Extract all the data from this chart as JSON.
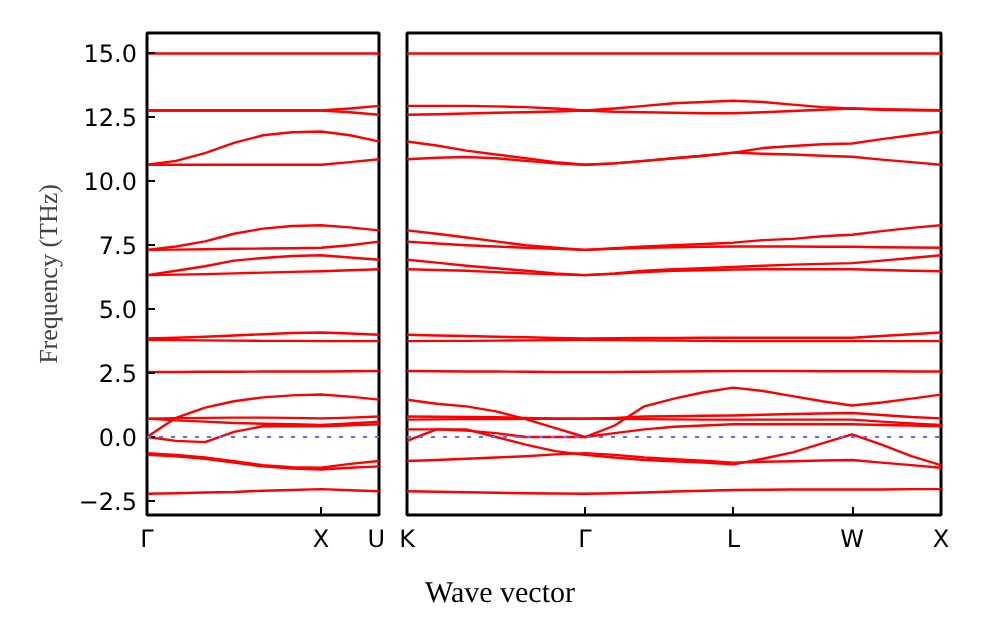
{
  "chart_data": [
    {
      "type": "line",
      "ylabel": "Frequency (THz)",
      "categories": [
        "Γ",
        null,
        null,
        null,
        null,
        null,
        "X",
        null,
        "U"
      ],
      "ylim": [
        -3.05,
        15.8
      ],
      "yticks": [
        {
          "value": -2.5,
          "label": "−2.5"
        },
        {
          "value": 0,
          "label": "0.0"
        },
        {
          "value": 2.5,
          "label": "2.5"
        },
        {
          "value": 5,
          "label": "5.0"
        },
        {
          "value": 7.5,
          "label": "7.5"
        },
        {
          "value": 10,
          "label": "10.0"
        },
        {
          "value": 12.5,
          "label": "12.5"
        },
        {
          "value": 15,
          "label": "15.0"
        }
      ],
      "ref_lines": [
        {
          "axis": "y",
          "value": 0,
          "color": "#6666ff",
          "line_style": "dotted"
        }
      ],
      "series": [
        {
          "color": "#ff0000",
          "values": [
            15.0,
            15.0,
            15.0,
            15.0,
            15.0,
            15.0,
            15.0,
            15.0,
            15.0
          ]
        },
        {
          "color": "#ff0000",
          "values": [
            12.77,
            12.77,
            12.77,
            12.77,
            12.77,
            12.77,
            12.77,
            12.85,
            12.95
          ]
        },
        {
          "color": "#ff0000",
          "values": [
            12.77,
            12.77,
            12.77,
            12.77,
            12.77,
            12.77,
            12.77,
            12.7,
            12.6
          ]
        },
        {
          "color": "#ff0000",
          "values": [
            10.65,
            10.8,
            11.1,
            11.5,
            11.8,
            11.92,
            11.95,
            11.8,
            11.56
          ]
        },
        {
          "color": "#ff0000",
          "values": [
            10.65,
            10.65,
            10.65,
            10.65,
            10.65,
            10.65,
            10.65,
            10.75,
            10.86
          ]
        },
        {
          "color": "#ff0000",
          "values": [
            7.32,
            7.45,
            7.65,
            7.95,
            8.15,
            8.25,
            8.28,
            8.2,
            8.08
          ]
        },
        {
          "color": "#ff0000",
          "values": [
            7.32,
            7.33,
            7.34,
            7.36,
            7.37,
            7.38,
            7.4,
            7.5,
            7.64
          ]
        },
        {
          "color": "#ff0000",
          "values": [
            6.33,
            6.5,
            6.68,
            6.9,
            7.0,
            7.08,
            7.11,
            7.02,
            6.93
          ]
        },
        {
          "color": "#ff0000",
          "values": [
            6.33,
            6.35,
            6.37,
            6.4,
            6.43,
            6.46,
            6.48,
            6.52,
            6.56
          ]
        },
        {
          "color": "#ff0000",
          "values": [
            3.85,
            3.88,
            3.92,
            3.97,
            4.02,
            4.07,
            4.09,
            4.05,
            4.0
          ]
        },
        {
          "color": "#ff0000",
          "values": [
            3.8,
            3.79,
            3.78,
            3.77,
            3.76,
            3.76,
            3.75,
            3.75,
            3.75
          ]
        },
        {
          "color": "#ff0000",
          "values": [
            2.54,
            2.54,
            2.55,
            2.55,
            2.56,
            2.56,
            2.56,
            2.57,
            2.58
          ]
        },
        {
          "color": "#ff0000",
          "values": [
            0,
            0.75,
            1.15,
            1.4,
            1.55,
            1.63,
            1.66,
            1.58,
            1.46
          ]
        },
        {
          "color": "#ff0000",
          "values": [
            0.72,
            0.74,
            0.75,
            0.76,
            0.76,
            0.75,
            0.73,
            0.76,
            0.8
          ]
        },
        {
          "color": "#ff0000",
          "values": [
            0.72,
            0.65,
            0.6,
            0.55,
            0.52,
            0.5,
            0.47,
            0.53,
            0.6
          ]
        },
        {
          "color": "#ff0000",
          "values": [
            0,
            -0.15,
            -0.2,
            0.2,
            0.42,
            0.42,
            0.42,
            0.46,
            0.5
          ]
        },
        {
          "color": "#ff0000",
          "values": [
            -0.63,
            -0.7,
            -0.8,
            -0.95,
            -1.1,
            -1.18,
            -1.2,
            -1.05,
            -0.94
          ]
        },
        {
          "color": "#ff0000",
          "values": [
            -0.7,
            -0.75,
            -0.85,
            -1.0,
            -1.15,
            -1.23,
            -1.27,
            -1.2,
            -1.15
          ]
        },
        {
          "color": "#ff0000",
          "values": [
            -2.22,
            -2.2,
            -2.17,
            -2.15,
            -2.1,
            -2.07,
            -2.04,
            -2.08,
            -2.12
          ]
        }
      ]
    },
    {
      "type": "line",
      "xlabel": "Wave vector",
      "categories": [
        "K",
        null,
        null,
        null,
        null,
        null,
        "Γ",
        null,
        null,
        null,
        null,
        "L",
        null,
        null,
        null,
        "W",
        null,
        null,
        "X"
      ],
      "ylim": [
        -3.05,
        15.8
      ],
      "yticks": [
        {
          "value": -2.5,
          "label": null
        },
        {
          "value": 0,
          "label": null
        },
        {
          "value": 2.5,
          "label": null
        },
        {
          "value": 5,
          "label": null
        },
        {
          "value": 7.5,
          "label": null
        },
        {
          "value": 10,
          "label": null
        },
        {
          "value": 12.5,
          "label": null
        },
        {
          "value": 15,
          "label": null
        }
      ],
      "tick_labels": "x",
      "ref_lines": [
        {
          "axis": "y",
          "value": 0,
          "color": "#6666ff",
          "line_style": "dotted"
        }
      ],
      "series": [
        {
          "color": "#ff0000",
          "values": [
            15.0,
            15.0,
            15.0,
            15.0,
            15.0,
            15.0,
            15.0,
            15.0,
            15.0,
            15.0,
            15.0,
            15.0,
            15.0,
            15.0,
            15.0,
            15.0,
            15.0,
            15.0,
            15.0
          ]
        },
        {
          "color": "#ff0000",
          "values": [
            12.95,
            12.95,
            12.95,
            12.93,
            12.9,
            12.85,
            12.77,
            12.85,
            12.95,
            13.05,
            13.1,
            13.15,
            13.1,
            13.0,
            12.9,
            12.85,
            12.8,
            12.78,
            12.77
          ]
        },
        {
          "color": "#ff0000",
          "values": [
            12.6,
            12.62,
            12.65,
            12.68,
            12.7,
            12.73,
            12.77,
            12.72,
            12.7,
            12.68,
            12.66,
            12.66,
            12.7,
            12.75,
            12.8,
            12.85,
            12.82,
            12.8,
            12.78
          ]
        },
        {
          "color": "#ff0000",
          "values": [
            11.56,
            11.4,
            11.2,
            11.05,
            10.9,
            10.75,
            10.65,
            10.7,
            10.8,
            10.9,
            11.0,
            11.12,
            11.3,
            11.38,
            11.45,
            11.48,
            11.65,
            11.8,
            11.95
          ]
        },
        {
          "color": "#ff0000",
          "values": [
            10.86,
            10.92,
            10.95,
            10.9,
            10.8,
            10.7,
            10.65,
            10.7,
            10.8,
            10.9,
            11.0,
            11.12,
            11.08,
            11.05,
            11.0,
            10.96,
            10.85,
            10.75,
            10.65
          ]
        },
        {
          "color": "#ff0000",
          "values": [
            8.08,
            7.95,
            7.8,
            7.65,
            7.5,
            7.4,
            7.32,
            7.38,
            7.45,
            7.5,
            7.55,
            7.6,
            7.7,
            7.75,
            7.85,
            7.91,
            8.05,
            8.18,
            8.28
          ]
        },
        {
          "color": "#ff0000",
          "values": [
            7.64,
            7.57,
            7.5,
            7.45,
            7.4,
            7.36,
            7.32,
            7.36,
            7.4,
            7.42,
            7.44,
            7.45,
            7.45,
            7.45,
            7.44,
            7.44,
            7.42,
            7.41,
            7.4
          ]
        },
        {
          "color": "#ff0000",
          "values": [
            6.93,
            6.82,
            6.7,
            6.6,
            6.5,
            6.4,
            6.33,
            6.4,
            6.5,
            6.56,
            6.6,
            6.65,
            6.7,
            6.74,
            6.77,
            6.8,
            6.9,
            7.0,
            7.11
          ]
        },
        {
          "color": "#ff0000",
          "values": [
            6.56,
            6.53,
            6.5,
            6.45,
            6.4,
            6.36,
            6.33,
            6.38,
            6.45,
            6.5,
            6.52,
            6.55,
            6.56,
            6.56,
            6.56,
            6.56,
            6.53,
            6.5,
            6.48
          ]
        },
        {
          "color": "#ff0000",
          "values": [
            4.0,
            3.97,
            3.95,
            3.92,
            3.9,
            3.87,
            3.85,
            3.86,
            3.87,
            3.87,
            3.88,
            3.88,
            3.88,
            3.88,
            3.88,
            3.88,
            3.95,
            4.02,
            4.09
          ]
        },
        {
          "color": "#ff0000",
          "values": [
            3.75,
            3.76,
            3.76,
            3.77,
            3.78,
            3.79,
            3.8,
            3.79,
            3.78,
            3.77,
            3.76,
            3.75,
            3.75,
            3.75,
            3.75,
            3.75,
            3.75,
            3.75,
            3.75
          ]
        },
        {
          "color": "#ff0000",
          "values": [
            2.58,
            2.57,
            2.56,
            2.56,
            2.55,
            2.54,
            2.54,
            2.54,
            2.55,
            2.56,
            2.57,
            2.58,
            2.58,
            2.58,
            2.57,
            2.57,
            2.57,
            2.56,
            2.56
          ]
        },
        {
          "color": "#ff0000",
          "values": [
            1.46,
            1.3,
            1.2,
            1.0,
            0.7,
            0.35,
            0,
            0.45,
            1.2,
            1.5,
            1.75,
            1.93,
            1.8,
            1.6,
            1.4,
            1.23,
            1.35,
            1.5,
            1.66
          ]
        },
        {
          "color": "#ff0000",
          "values": [
            0.8,
            0.79,
            0.78,
            0.77,
            0.75,
            0.73,
            0.72,
            0.75,
            0.8,
            0.81,
            0.83,
            0.84,
            0.87,
            0.9,
            0.92,
            0.94,
            0.86,
            0.78,
            0.73
          ]
        },
        {
          "color": "#ff0000",
          "values": [
            0.68,
            0.69,
            0.7,
            0.7,
            0.71,
            0.71,
            0.72,
            0.71,
            0.7,
            0.69,
            0.68,
            0.68,
            0.68,
            0.68,
            0.68,
            0.68,
            0.6,
            0.53,
            0.47
          ]
        },
        {
          "color": "#ff0000",
          "values": [
            0.3,
            0.3,
            0.25,
            0.15,
            0.0,
            0.0,
            0.0,
            0.15,
            0.3,
            0.4,
            0.45,
            0.5,
            0.5,
            0.5,
            0.5,
            0.5,
            0.47,
            0.45,
            0.42
          ]
        },
        {
          "color": "#ff0000",
          "values": [
            -0.94,
            -0.9,
            -0.85,
            -0.8,
            -0.75,
            -0.68,
            -0.63,
            -0.7,
            -0.8,
            -0.87,
            -0.93,
            -1.0,
            -0.97,
            -0.95,
            -0.92,
            -0.9,
            -1.0,
            -1.1,
            -1.2
          ]
        },
        {
          "color": "#ff0000",
          "values": [
            -0.15,
            0.3,
            0.3,
            0.0,
            -0.3,
            -0.55,
            -0.7,
            -0.8,
            -0.9,
            -0.95,
            -1.0,
            -1.07,
            -0.85,
            -0.6,
            -0.25,
            0.1,
            -0.3,
            -0.75,
            -1.1
          ]
        },
        {
          "color": "#ff0000",
          "values": [
            -2.12,
            -2.14,
            -2.16,
            -2.18,
            -2.2,
            -2.21,
            -2.22,
            -2.2,
            -2.17,
            -2.13,
            -2.1,
            -2.07,
            -2.06,
            -2.05,
            -2.05,
            -2.05,
            -2.05,
            -2.04,
            -2.04
          ]
        }
      ]
    }
  ]
}
